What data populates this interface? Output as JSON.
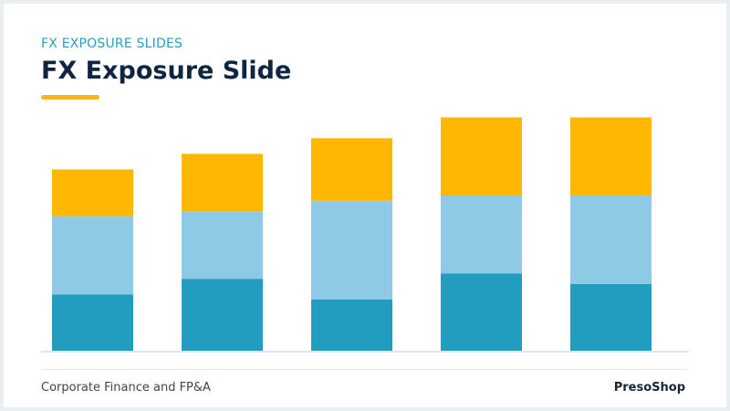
{
  "slide": {
    "kicker": "FX EXPOSURE SLIDES",
    "title": "FX Exposure Slide",
    "accent_color": "#f6b818"
  },
  "footer": {
    "left": "Corporate Finance and FP&A",
    "right": "PresoShop"
  },
  "chart_data": {
    "type": "bar",
    "stacked": true,
    "categories": [
      "",
      "",
      "",
      "",
      ""
    ],
    "series": [
      {
        "values": [
          22,
          28,
          20,
          30,
          26
        ],
        "color": "#229dbf"
      },
      {
        "values": [
          30,
          26,
          38,
          30,
          34
        ],
        "color": "#8ecae6"
      },
      {
        "values": [
          18,
          22,
          24,
          30,
          30
        ],
        "color": "#ffb703"
      }
    ],
    "ylim": [
      0,
      90
    ],
    "grid": false,
    "legend": "none",
    "title": "",
    "xlabel": "",
    "ylabel": ""
  }
}
